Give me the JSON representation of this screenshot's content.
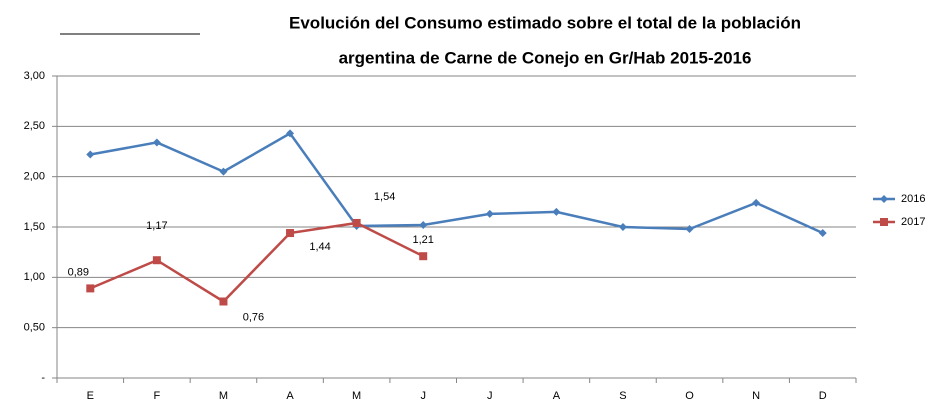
{
  "chart_data": {
    "type": "line",
    "title": [
      "Evolución del Consumo estimado sobre el total de la población",
      "argentina de Carne de Conejo en Gr/Hab 2015-2016"
    ],
    "categories": [
      "E",
      "F",
      "M",
      "A",
      "M",
      "J",
      "J",
      "A",
      "S",
      "O",
      "N",
      "D"
    ],
    "series": [
      {
        "name": "2016",
        "color": "#4a7ebb",
        "values": [
          2.22,
          2.34,
          2.05,
          2.43,
          1.51,
          1.52,
          1.63,
          1.65,
          1.5,
          1.48,
          1.74,
          1.44
        ]
      },
      {
        "name": "2017",
        "color": "#be4b48",
        "values": [
          0.89,
          1.17,
          0.76,
          1.44,
          1.54,
          1.21,
          null,
          null,
          null,
          null,
          null,
          null
        ],
        "value_labels": [
          "0,89",
          "1,17",
          "0,76",
          "1,44",
          "1,54",
          "1,21",
          null,
          null,
          null,
          null,
          null,
          null
        ]
      }
    ],
    "ylim": [
      0,
      3
    ],
    "yticks": [
      {
        "value": 0,
        "label": "-"
      },
      {
        "value": 0.5,
        "label": "0,50"
      },
      {
        "value": 1,
        "label": "1,00"
      },
      {
        "value": 1.5,
        "label": "1,50"
      },
      {
        "value": 2,
        "label": "2,00"
      },
      {
        "value": 2.5,
        "label": "2,50"
      },
      {
        "value": 3,
        "label": "3,00"
      }
    ],
    "grid": true,
    "legend": "right"
  }
}
